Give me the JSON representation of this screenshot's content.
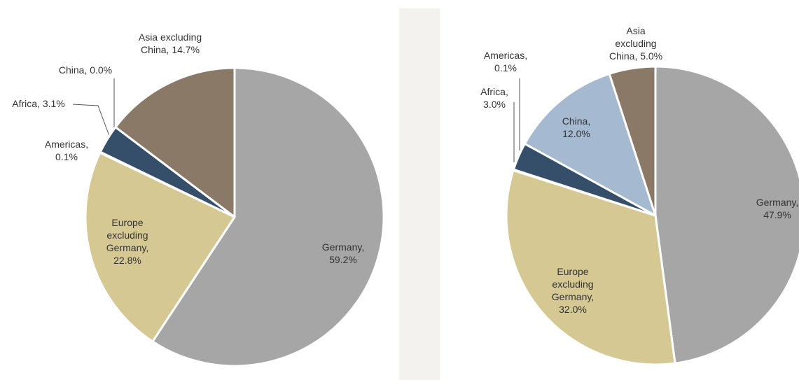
{
  "chart_data": [
    {
      "type": "pie",
      "categories": [
        "Germany,",
        "Europe excluding Germany,",
        "Americas,",
        "Africa,",
        "China,",
        "Asia excluding China,"
      ],
      "values": [
        59.2,
        22.8,
        0.1,
        3.1,
        0.0,
        14.7
      ],
      "value_labels": [
        "59.2%",
        "22.8%",
        "0.1%",
        "3.1%",
        "0.0%",
        "14.7%"
      ],
      "colors": [
        "#a6a6a6",
        "#d5c893",
        "#354f6b",
        "#354f6b",
        "#a5bad1",
        "#8a7967"
      ]
    },
    {
      "type": "pie",
      "categories": [
        "Germany,",
        "Europe excluding Germany,",
        "Americas,",
        "Africa,",
        "China,",
        "Asia excluding China,"
      ],
      "values": [
        47.9,
        32.0,
        0.1,
        3.0,
        12.0,
        5.0
      ],
      "value_labels": [
        "47.9%",
        "32.0%",
        "0.1%",
        "3.0%",
        "12.0%",
        "5.0%"
      ],
      "colors": [
        "#a6a6a6",
        "#d5c893",
        "#354f6b",
        "#354f6b",
        "#a5bad1",
        "#8a7967"
      ]
    }
  ]
}
